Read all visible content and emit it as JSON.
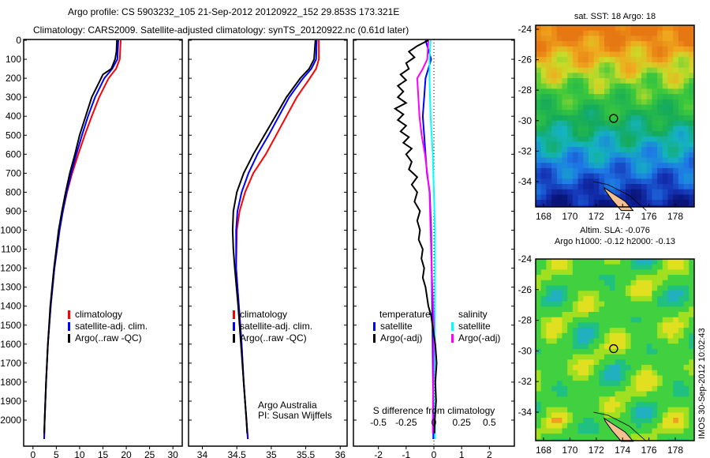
{
  "title": {
    "line1": "Argo profile: CS 5903232_105 21-Sep-2012 20120922_152 29.853S 173.321E",
    "line2": "Climatology: CARS2009. Satellite-adjusted climatology: synTS_20120922.nc (0.61d later)"
  },
  "footer": "IMOS 30-Sep-2012 10:02:43",
  "chart_data": [
    {
      "type": "line",
      "name": "temperature",
      "xlabel": "temperature (deg C)",
      "ylabel": "depth",
      "xlim": [
        -2,
        32
      ],
      "ylim": [
        2140,
        0
      ],
      "xticks": [
        0,
        5,
        10,
        15,
        20,
        25,
        30
      ],
      "yticks": [
        0,
        100,
        200,
        300,
        400,
        500,
        600,
        700,
        800,
        900,
        1000,
        1100,
        1200,
        1300,
        1400,
        1500,
        1600,
        1700,
        1800,
        1900,
        2000
      ],
      "legend": [
        "climatology",
        "satellite-adj. clim.",
        "Argo(..raw -QC)"
      ],
      "legend_placement": "lower-right",
      "series": [
        {
          "name": "climatology",
          "color": "#ff0000",
          "depth": [
            0,
            100,
            150,
            200,
            300,
            400,
            500,
            600,
            700,
            800,
            900,
            1000,
            1200,
            1400,
            1600,
            1800,
            2000,
            2100
          ],
          "values": [
            18.8,
            18.6,
            17.8,
            16.2,
            14.2,
            12.6,
            11.1,
            9.7,
            8.4,
            7.3,
            6.4,
            5.7,
            4.6,
            3.8,
            3.2,
            2.8,
            2.5,
            2.4
          ]
        },
        {
          "name": "satellite-adj. clim.",
          "color": "#0000ff",
          "depth": [
            0,
            100,
            150,
            200,
            300,
            400,
            500,
            600,
            700,
            800,
            900,
            1000,
            1200,
            1400,
            1600,
            1800,
            2000,
            2100
          ],
          "values": [
            18.3,
            18.1,
            17.0,
            15.3,
            13.3,
            11.8,
            10.5,
            9.3,
            8.2,
            7.2,
            6.4,
            5.7,
            4.6,
            3.8,
            3.2,
            2.8,
            2.5,
            2.4
          ]
        },
        {
          "name": "Argo(..raw -QC)",
          "color": "#000000",
          "depth": [
            0,
            60,
            100,
            150,
            180,
            220,
            300,
            400,
            500,
            600,
            700,
            800,
            900,
            1000,
            1200,
            1400,
            1600,
            1800,
            2000,
            2070
          ],
          "values": [
            18.0,
            17.9,
            17.6,
            16.8,
            15.0,
            14.2,
            12.6,
            11.3,
            10.0,
            9.0,
            7.9,
            7.0,
            6.2,
            5.5,
            4.5,
            3.7,
            3.2,
            2.8,
            2.5,
            2.4
          ]
        }
      ]
    },
    {
      "type": "line",
      "name": "salinity",
      "xlabel": "salinity",
      "xlim": [
        33.8,
        36.1
      ],
      "ylim": [
        2140,
        0
      ],
      "xticks": [
        34,
        34.5,
        35,
        35.5,
        36
      ],
      "legend": [
        "climatology",
        "satellite-adj. clim.",
        "Argo(..raw -QC)"
      ],
      "legend_placement": "lower-right",
      "annotation": [
        "Argo Australia",
        "PI: Susan Wijffels"
      ],
      "series": [
        {
          "name": "climatology",
          "color": "#ff0000",
          "depth": [
            0,
            100,
            150,
            200,
            300,
            400,
            500,
            600,
            700,
            800,
            900,
            1000,
            1200,
            1400,
            1600,
            1800,
            2000,
            2100
          ],
          "values": [
            35.69,
            35.69,
            35.65,
            35.56,
            35.37,
            35.22,
            35.07,
            34.92,
            34.74,
            34.62,
            34.54,
            34.5,
            34.49,
            34.53,
            34.57,
            34.6,
            34.64,
            34.66
          ]
        },
        {
          "name": "satellite-adj. clim.",
          "color": "#0000ff",
          "depth": [
            0,
            100,
            150,
            200,
            300,
            400,
            500,
            600,
            700,
            800,
            900,
            1000,
            1200,
            1400,
            1600,
            1800,
            2000,
            2100
          ],
          "values": [
            35.66,
            35.65,
            35.58,
            35.46,
            35.26,
            35.11,
            34.96,
            34.8,
            34.67,
            34.57,
            34.51,
            34.49,
            34.49,
            34.53,
            34.57,
            34.6,
            34.64,
            34.66
          ]
        },
        {
          "name": "Argo(..raw -QC)",
          "color": "#000000",
          "depth": [
            0,
            100,
            150,
            200,
            300,
            400,
            500,
            600,
            700,
            800,
            900,
            1000,
            1100,
            1200,
            1400,
            1600,
            1800,
            2000,
            2070
          ],
          "values": [
            35.64,
            35.62,
            35.55,
            35.42,
            35.22,
            35.06,
            34.9,
            34.74,
            34.6,
            34.5,
            34.45,
            34.44,
            34.45,
            34.47,
            34.52,
            34.56,
            34.6,
            34.64,
            34.65
          ]
        }
      ]
    },
    {
      "type": "line",
      "name": "difference",
      "xlabel": "T difference from climatology",
      "x2label": "S difference from climatology",
      "xlim": [
        -2.9,
        2.9
      ],
      "x2lim": [
        -0.725,
        0.725
      ],
      "ylim": [
        2140,
        0
      ],
      "xticks": [
        -2,
        -1,
        0,
        1,
        2
      ],
      "x2ticks": [
        -0.5,
        -0.25,
        0,
        0.25,
        0.5
      ],
      "x2ticklabels": [
        "-0.5",
        "-0.25",
        "0",
        "0.25",
        "0.5"
      ],
      "legend_headers": [
        "temperature",
        "salinity"
      ],
      "legend": [
        "satellite",
        "Argo(-adj)",
        "satellite",
        "Argo(-adj)"
      ],
      "legend_placement": "lower-center",
      "series": [
        {
          "name": "T satellite",
          "axis": "T",
          "color": "#0000ff",
          "depth": [
            0,
            50,
            100,
            200,
            300,
            400,
            500,
            600,
            700,
            800,
            1000,
            1200,
            1500,
            2000,
            2100
          ],
          "values": [
            -0.3,
            -0.2,
            -0.1,
            -0.3,
            -0.35,
            -0.4,
            -0.35,
            -0.3,
            -0.25,
            -0.15,
            -0.1,
            -0.08,
            -0.05,
            -0.02,
            -0.02
          ]
        },
        {
          "name": "S satellite",
          "axis": "S",
          "color": "#00ffff",
          "depth": [
            0,
            100,
            200,
            300,
            400,
            500,
            600,
            800,
            1000,
            1500,
            2000,
            2100
          ],
          "values": [
            -0.03,
            -0.04,
            -0.04,
            -0.035,
            -0.03,
            -0.02,
            -0.01,
            0.0,
            0.01,
            0.01,
            0.01,
            0.01
          ]
        },
        {
          "name": "S Argo(-adj)",
          "axis": "S",
          "color": "#ff00ff",
          "depth": [
            0,
            100,
            150,
            200,
            300,
            400,
            500,
            600,
            700,
            800,
            1000,
            1200,
            1500,
            2000,
            2070
          ],
          "values": [
            -0.05,
            -0.06,
            -0.1,
            -0.15,
            -0.14,
            -0.13,
            -0.11,
            -0.08,
            -0.06,
            -0.04,
            -0.03,
            -0.02,
            0.0,
            -0.01,
            -0.01
          ]
        },
        {
          "name": "T Argo(-adj)",
          "axis": "T",
          "color": "#000000",
          "depth": [
            0,
            30,
            60,
            90,
            120,
            150,
            180,
            210,
            240,
            270,
            300,
            330,
            360,
            390,
            420,
            450,
            480,
            510,
            540,
            570,
            600,
            640,
            680,
            720,
            760,
            800,
            850,
            900,
            950,
            1000,
            1050,
            1100,
            1150,
            1200,
            1250,
            1300,
            1350,
            1400,
            1450,
            1500,
            1550,
            1600,
            1700,
            1800,
            1900,
            2000,
            2070
          ],
          "values": [
            -0.2,
            -0.6,
            -0.9,
            -0.7,
            -1.0,
            -0.9,
            -1.2,
            -1.0,
            -1.3,
            -1.1,
            -1.3,
            -1.0,
            -1.4,
            -1.1,
            -1.3,
            -1.0,
            -1.2,
            -0.9,
            -1.1,
            -0.8,
            -1.0,
            -0.8,
            -0.9,
            -0.6,
            -0.8,
            -0.6,
            -0.7,
            -0.5,
            -0.6,
            -0.5,
            -0.55,
            -0.4,
            -0.45,
            -0.35,
            -0.4,
            -0.3,
            -0.25,
            -0.2,
            -0.1,
            -0.05,
            0.0,
            0.05,
            0.1,
            0.05,
            0.08,
            0.03,
            0.02
          ]
        }
      ]
    },
    {
      "type": "heatmap",
      "name": "sst-map",
      "title": "sat. SST: 18 Argo: 18",
      "xlim": [
        167.4,
        179.4
      ],
      "ylim": [
        -35.9,
        -23.8
      ],
      "xticks": [
        168,
        170,
        172,
        174,
        176,
        178
      ],
      "yticks": [
        -24,
        -26,
        -28,
        -30,
        -32,
        -34
      ],
      "marker": {
        "lon": 173.321,
        "lat": -29.853
      }
    },
    {
      "type": "heatmap",
      "name": "sla-map",
      "title": [
        "Altim. SLA: -0.076",
        "Argo h1000: -0.12 h2000: -0.13"
      ],
      "xlim": [
        167.4,
        179.4
      ],
      "ylim": [
        -35.9,
        -23.8
      ],
      "xticks": [
        168,
        170,
        172,
        174,
        176,
        178
      ],
      "yticks": [
        -24,
        -26,
        -28,
        -30,
        -32,
        -34
      ],
      "marker": {
        "lon": 173.321,
        "lat": -29.853
      }
    }
  ]
}
